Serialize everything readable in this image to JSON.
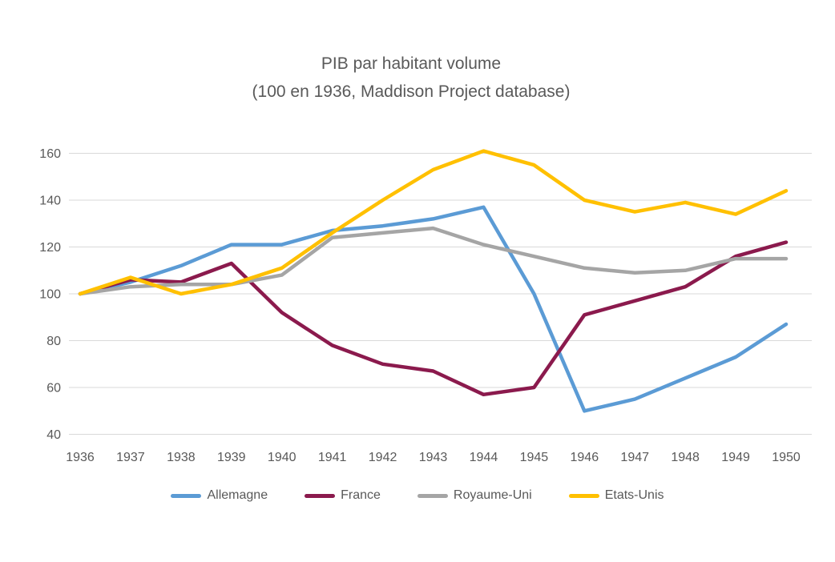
{
  "page": {
    "background": "#FFFFFF"
  },
  "chart_data": {
    "type": "line",
    "title": "PIB par habitant volume",
    "subtitle": "(100 en 1936, Maddison Project database)",
    "categories": [
      "1936",
      "1937",
      "1938",
      "1939",
      "1940",
      "1941",
      "1942",
      "1943",
      "1944",
      "1945",
      "1946",
      "1947",
      "1948",
      "1949",
      "1950"
    ],
    "series": [
      {
        "name": "Allemagne",
        "color": "#5B9BD5",
        "values": [
          100,
          105,
          112,
          121,
          121,
          127,
          129,
          132,
          137,
          100,
          50,
          55,
          64,
          73,
          87
        ]
      },
      {
        "name": "France",
        "color": "#8B1A4D",
        "values": [
          100,
          106,
          105,
          113,
          92,
          78,
          70,
          67,
          57,
          60,
          91,
          97,
          103,
          116,
          122
        ]
      },
      {
        "name": "Royaume-Uni",
        "color": "#A5A5A5",
        "values": [
          100,
          103,
          104,
          104,
          108,
          124,
          126,
          128,
          121,
          116,
          111,
          109,
          110,
          115,
          115
        ]
      },
      {
        "name": "Etats-Unis",
        "color": "#FFC000",
        "values": [
          100,
          107,
          100,
          104,
          111,
          126,
          140,
          153,
          161,
          155,
          140,
          135,
          139,
          134,
          144
        ]
      }
    ],
    "ylim": [
      40,
      160
    ],
    "yticks": [
      40,
      60,
      80,
      100,
      120,
      140,
      160
    ],
    "grid": "horizontal",
    "legend_position": "bottom",
    "title_color": "#595959",
    "axis_label_color": "#595959",
    "grid_color": "#D9D9D9"
  }
}
